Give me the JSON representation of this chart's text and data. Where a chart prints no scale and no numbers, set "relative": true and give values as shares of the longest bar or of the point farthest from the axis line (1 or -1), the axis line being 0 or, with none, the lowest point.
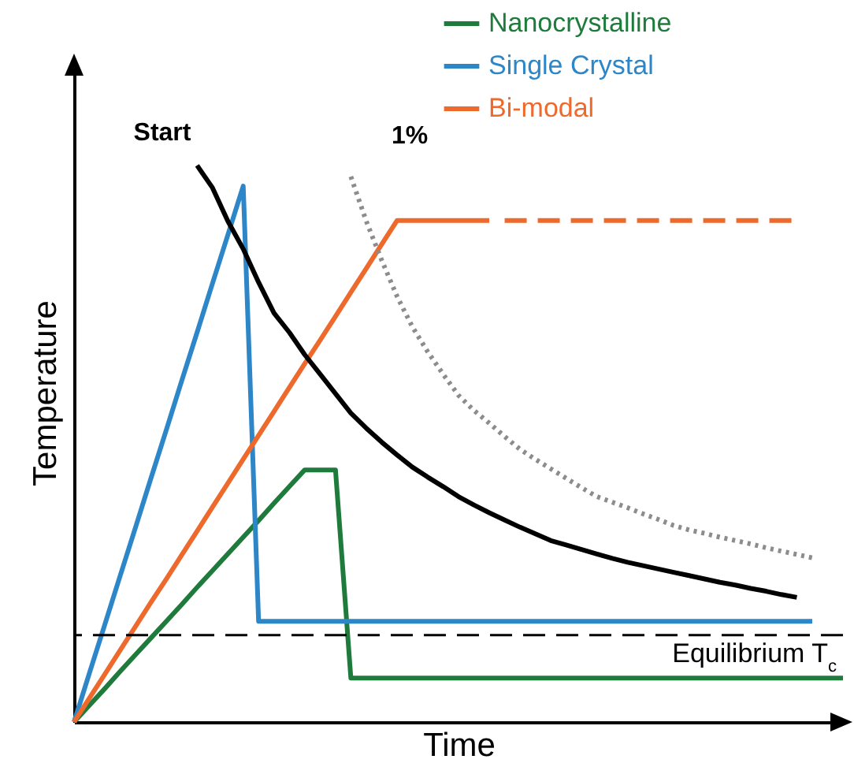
{
  "chart_data": {
    "type": "line",
    "relative": true,
    "xlabel": "Time",
    "ylabel": "Temperature",
    "legend": "top right",
    "marker": "none",
    "categories": [
      null,
      null,
      null,
      null,
      null,
      null,
      null,
      null,
      null,
      null,
      null,
      null,
      null,
      null,
      null,
      null,
      null,
      null,
      null,
      null,
      null,
      null,
      null,
      null,
      null,
      null,
      null,
      null,
      null,
      null,
      null,
      null,
      null,
      null,
      null,
      null,
      null,
      null,
      null,
      null,
      null,
      null,
      null,
      null,
      null,
      null,
      null,
      null,
      null,
      null,
      null
    ],
    "series": [
      {
        "name": "Nanocrystalline",
        "color": "#1e7b3c",
        "values": [
          0,
          0.03,
          0.06,
          0.091,
          0.121,
          0.151,
          0.181,
          0.211,
          0.242,
          0.272,
          0.302,
          0.332,
          0.362,
          0.393,
          0.423,
          0.453,
          0.453,
          0.453,
          0.079,
          0.079,
          0.079,
          0.079,
          0.079,
          0.079,
          0.079,
          0.079,
          0.079,
          0.079,
          0.079,
          0.079,
          0.079,
          0.079,
          0.079,
          0.079,
          0.079,
          0.079,
          0.079,
          0.079,
          0.079,
          0.079,
          0.079,
          0.079,
          0.079,
          0.079,
          0.079,
          0.079,
          0.079,
          0.079,
          0.079,
          0.079,
          0.079
        ]
      },
      {
        "name": "Single Crystal",
        "color": "#2d86c8",
        "values": [
          0,
          0.088,
          0.175,
          0.263,
          0.35,
          0.438,
          0.525,
          0.613,
          0.7,
          0.788,
          0.875,
          0.963,
          0.181,
          0.181,
          0.181,
          0.181,
          0.181,
          0.181,
          0.181,
          0.181,
          0.181,
          0.181,
          0.181,
          0.181,
          0.181,
          0.181,
          0.181,
          0.181,
          0.181,
          0.181,
          0.181,
          0.181,
          0.181,
          0.181,
          0.181,
          0.181,
          0.181,
          0.181,
          0.181,
          0.181,
          0.181,
          0.181,
          0.181,
          0.181,
          0.181,
          0.181,
          0.181,
          0.181,
          0.181,
          null,
          null
        ]
      },
      {
        "name": "Bi-modal",
        "color": "#ed6a2c",
        "values": [
          0,
          0.043,
          0.086,
          0.129,
          0.172,
          0.215,
          0.257,
          0.3,
          0.343,
          0.386,
          0.429,
          0.472,
          0.515,
          0.558,
          0.601,
          0.644,
          0.686,
          0.729,
          0.772,
          0.815,
          0.858,
          0.901,
          0.901,
          0.901,
          0.901,
          0.901,
          0.901,
          0.901,
          null,
          null,
          null,
          null,
          null,
          null,
          null,
          null,
          null,
          null,
          null,
          null,
          null,
          null,
          null,
          null,
          null,
          null,
          null,
          null,
          null,
          null,
          null
        ]
      },
      {
        "color": "#ed6a2c",
        "line_style": "dashed",
        "values": [
          null,
          null,
          null,
          null,
          null,
          null,
          null,
          null,
          null,
          null,
          null,
          null,
          null,
          null,
          null,
          null,
          null,
          null,
          null,
          null,
          null,
          null,
          null,
          null,
          null,
          null,
          null,
          null,
          0.901,
          0.901,
          0.901,
          0.901,
          0.901,
          0.901,
          0.901,
          0.901,
          0.901,
          0.901,
          0.901,
          0.901,
          0.901,
          0.901,
          0.901,
          0.901,
          0.901,
          0.901,
          0.901,
          0.901,
          null,
          null,
          null
        ]
      },
      {
        "color": "#000000",
        "values": [
          null,
          null,
          null,
          null,
          null,
          null,
          null,
          null,
          1,
          0.96,
          0.9,
          0.85,
          0.79,
          0.735,
          0.7,
          0.66,
          0.625,
          0.59,
          0.555,
          0.528,
          0.503,
          0.48,
          0.458,
          0.44,
          0.423,
          0.405,
          0.39,
          0.376,
          0.363,
          0.35,
          0.338,
          0.326,
          0.318,
          0.31,
          0.302,
          0.294,
          0.287,
          0.281,
          0.275,
          0.269,
          0.263,
          0.257,
          0.251,
          0.246,
          0.24,
          0.235,
          0.229,
          0.224,
          null,
          null,
          null
        ]
      },
      {
        "color": "#8c8c8c",
        "line_style": "dotted",
        "values": [
          null,
          null,
          null,
          null,
          null,
          null,
          null,
          null,
          null,
          null,
          null,
          null,
          null,
          null,
          null,
          null,
          null,
          null,
          0.98,
          0.9,
          0.83,
          0.765,
          0.71,
          0.665,
          0.625,
          0.587,
          0.56,
          0.537,
          0.513,
          0.49,
          0.472,
          0.455,
          0.438,
          0.421,
          0.405,
          0.395,
          0.385,
          0.374,
          0.364,
          0.353,
          0.345,
          0.339,
          0.332,
          0.326,
          0.32,
          0.313,
          0.307,
          0.301,
          0.295,
          null,
          null
        ]
      }
    ],
    "annotations": [
      "Start",
      "1%"
    ],
    "ref_lines": [
      {
        "axis": "y",
        "value": 0.156,
        "label": "Equilibrium T$_{c}$",
        "color": "#000000",
        "line_style": "dashed"
      }
    ]
  }
}
